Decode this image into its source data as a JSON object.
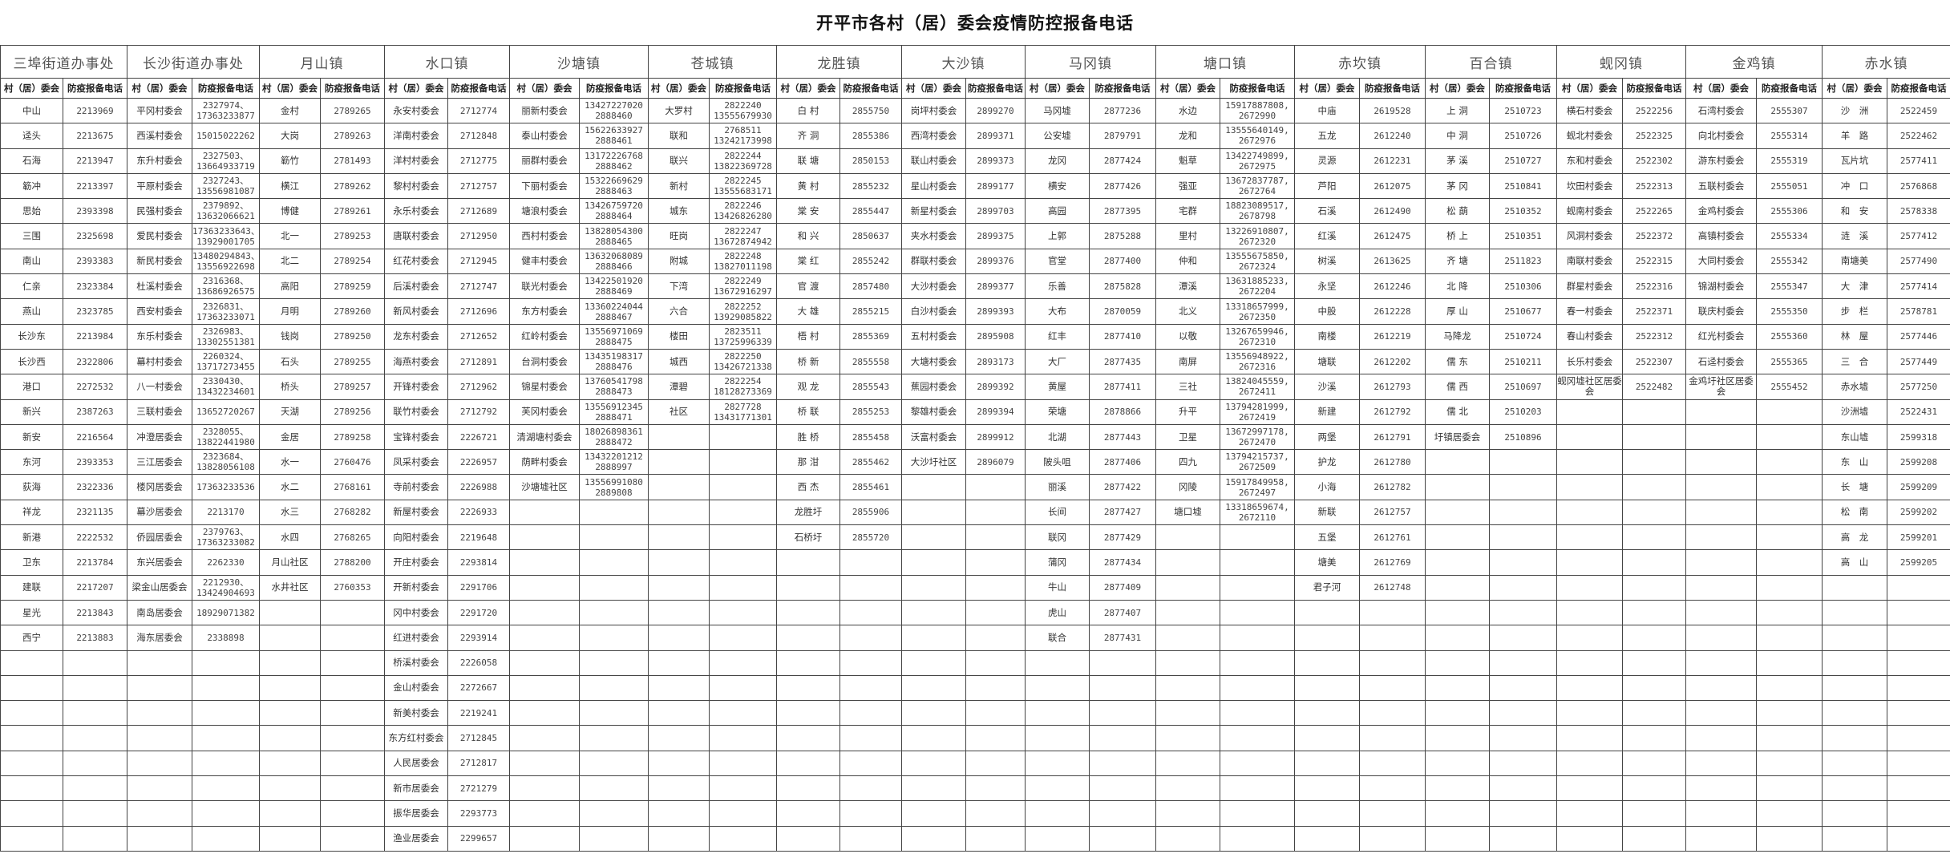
{
  "title": "开平市各村（居）委会疫情防控报备电话",
  "sub_headers": {
    "name": "村（居）委会",
    "phone": "防疫报备电话"
  },
  "towns": [
    {
      "name": "三埠街道办事处",
      "rows": [
        [
          "中山",
          "2213969"
        ],
        [
          "迳头",
          "2213675"
        ],
        [
          "石海",
          "2213947"
        ],
        [
          "簕冲",
          "2213397"
        ],
        [
          "思始",
          "2393398"
        ],
        [
          "三围",
          "2325698"
        ],
        [
          "南山",
          "2393383"
        ],
        [
          "仁亲",
          "2323384"
        ],
        [
          "燕山",
          "2323785"
        ],
        [
          "长沙东",
          "2213984"
        ],
        [
          "长沙西",
          "2322806"
        ],
        [
          "港口",
          "2272532"
        ],
        [
          "新兴",
          "2387263"
        ],
        [
          "新安",
          "2216564"
        ],
        [
          "东河",
          "2393353"
        ],
        [
          "荻海",
          "2322336"
        ],
        [
          "祥龙",
          "2321135"
        ],
        [
          "新港",
          "2222532"
        ],
        [
          "卫东",
          "2213784"
        ],
        [
          "建联",
          "2217207"
        ],
        [
          "星光",
          "2213843"
        ],
        [
          "西宁",
          "2213883"
        ]
      ]
    },
    {
      "name": "长沙街道办事处",
      "rows": [
        [
          "平冈村委会",
          "2327974、\n17363233877"
        ],
        [
          "西溪村委会",
          "15015022262"
        ],
        [
          "东升村委会",
          "2327503、\n13664933719"
        ],
        [
          "平原村委会",
          "2327243、\n13556981087"
        ],
        [
          "民强村委会",
          "2379892、\n13632066621"
        ],
        [
          "爱民村委会",
          "17363233643、\n13929001705"
        ],
        [
          "新民村委会",
          "13480294843、\n13556922698"
        ],
        [
          "杜溪村委会",
          "2316368、\n13686926575"
        ],
        [
          "西安村委会",
          "2326831、\n17363233071"
        ],
        [
          "东乐村委会",
          "2326983、\n13302551381"
        ],
        [
          "幕村村委会",
          "2260324、\n13717273455"
        ],
        [
          "八一村委会",
          "2330430、\n13432234601"
        ],
        [
          "三联村委会",
          "13652720267"
        ],
        [
          "冲澄居委会",
          "2328055、\n13822441980"
        ],
        [
          "三江居委会",
          "2323684、\n13828056108"
        ],
        [
          "楼冈居委会",
          "17363233536"
        ],
        [
          "幕沙居委会",
          "2213170"
        ],
        [
          "侨园居委会",
          "2379763、\n17363233082"
        ],
        [
          "东兴居委会",
          "2262330"
        ],
        [
          "梁金山居委会",
          "2212930、\n13424904693"
        ],
        [
          "南岛居委会",
          "18929071382"
        ],
        [
          "海东居委会",
          "2338898"
        ]
      ]
    },
    {
      "name": "月山镇",
      "rows": [
        [
          "金村",
          "2789265"
        ],
        [
          "大岗",
          "2789263"
        ],
        [
          "簕竹",
          "2781493"
        ],
        [
          "横江",
          "2789262"
        ],
        [
          "博健",
          "2789261"
        ],
        [
          "北一",
          "2789253"
        ],
        [
          "北二",
          "2789254"
        ],
        [
          "高阳",
          "2789259"
        ],
        [
          "月明",
          "2789260"
        ],
        [
          "钱岗",
          "2789250"
        ],
        [
          "石头",
          "2789255"
        ],
        [
          "桥头",
          "2789257"
        ],
        [
          "天湖",
          "2789256"
        ],
        [
          "金居",
          "2789258"
        ],
        [
          "水一",
          "2760476"
        ],
        [
          "水二",
          "2768161"
        ],
        [
          "水三",
          "2768282"
        ],
        [
          "水四",
          "2768265"
        ],
        [
          "月山社区",
          "2788200"
        ],
        [
          "水井社区",
          "2760353"
        ]
      ]
    },
    {
      "name": "水口镇",
      "rows": [
        [
          "永安村委会",
          "2712774"
        ],
        [
          "洋南村委会",
          "2712848"
        ],
        [
          "洋村村委会",
          "2712775"
        ],
        [
          "黎村村委会",
          "2712757"
        ],
        [
          "永乐村委会",
          "2712689"
        ],
        [
          "唐联村委会",
          "2712950"
        ],
        [
          "红花村委会",
          "2712945"
        ],
        [
          "后溪村委会",
          "2712747"
        ],
        [
          "新风村委会",
          "2712696"
        ],
        [
          "龙东村委会",
          "2712652"
        ],
        [
          "海燕村委会",
          "2712891"
        ],
        [
          "开锋村委会",
          "2712962"
        ],
        [
          "联竹村委会",
          "2712792"
        ],
        [
          "宝锋村委会",
          "2226721"
        ],
        [
          "凤采村委会",
          "2226957"
        ],
        [
          "寺前村委会",
          "2226988"
        ],
        [
          "新屋村委会",
          "2226933"
        ],
        [
          "向阳村委会",
          "2219648"
        ],
        [
          "开庄村委会",
          "2293814"
        ],
        [
          "开新村委会",
          "2291706"
        ],
        [
          "冈中村委会",
          "2291720"
        ],
        [
          "红进村委会",
          "2293914"
        ],
        [
          "桥溪村委会",
          "2226058"
        ],
        [
          "金山村委会",
          "2272667"
        ],
        [
          "新美村委会",
          "2219241"
        ],
        [
          "东方红村委会",
          "2712845"
        ],
        [
          "人民居委会",
          "2712817"
        ],
        [
          "新市居委会",
          "2721279"
        ],
        [
          "振华居委会",
          "2293773"
        ],
        [
          "渔业居委会",
          "2299657"
        ]
      ]
    },
    {
      "name": "沙塘镇",
      "rows": [
        [
          "丽新村委会",
          "13427227020\n2888460"
        ],
        [
          "泰山村委会",
          "15622633927\n2888461"
        ],
        [
          "丽群村委会",
          "13172226768\n2888462"
        ],
        [
          "下丽村委会",
          "15322669629\n2888463"
        ],
        [
          "塘浪村委会",
          "13426759720\n2888464"
        ],
        [
          "西村村委会",
          "13828054300\n2888465"
        ],
        [
          "健丰村委会",
          "13632068089\n2888466"
        ],
        [
          "联光村委会",
          "13422501920\n2888469"
        ],
        [
          "东方村委会",
          "13360224044\n2888467"
        ],
        [
          "红岭村委会",
          "13556971069\n2888475"
        ],
        [
          "台洞村委会",
          "13435198317\n2888476"
        ],
        [
          "锦星村委会",
          "13760541798\n2888473"
        ],
        [
          "芙冈村委会",
          "13556912345\n2888471"
        ],
        [
          "清湖塘村委会",
          "18026898361\n2888472"
        ],
        [
          "荫畔村委会",
          "13432201212\n2888997"
        ],
        [
          "沙塘墟社区",
          "13556991080\n2889808"
        ]
      ]
    },
    {
      "name": "苍城镇",
      "rows": [
        [
          "大罗村",
          "2822240\n13555679930"
        ],
        [
          "联和",
          "2768511\n13242173998"
        ],
        [
          "联兴",
          "2822244\n13822369728"
        ],
        [
          "新村",
          "2822245\n13555683171"
        ],
        [
          "城东",
          "2822246\n13426826280"
        ],
        [
          "旺岗",
          "2822247\n13672874942"
        ],
        [
          "附城",
          "2822248\n13827011198"
        ],
        [
          "下湾",
          "2822249\n13672916297"
        ],
        [
          "六合",
          "2822252\n13929085822"
        ],
        [
          "楼田",
          "2823511\n13725996339"
        ],
        [
          "城西",
          "2822250\n13426721338"
        ],
        [
          "潭碧",
          "2822254\n18128273369"
        ],
        [
          "社区",
          "2827728\n13431771301"
        ]
      ]
    },
    {
      "name": "龙胜镇",
      "rows": [
        [
          "白 村",
          "2855750"
        ],
        [
          "齐 洞",
          "2855386"
        ],
        [
          "联 塘",
          "2850153"
        ],
        [
          "黄 村",
          "2855232"
        ],
        [
          "棠 安",
          "2855447"
        ],
        [
          "和 兴",
          "2850637"
        ],
        [
          "棠 红",
          "2855242"
        ],
        [
          "官 渡",
          "2857480"
        ],
        [
          "大 雄",
          "2855215"
        ],
        [
          "梧 村",
          "2855369"
        ],
        [
          "桥 新",
          "2855558"
        ],
        [
          "观 龙",
          "2855543"
        ],
        [
          "桥 联",
          "2855253"
        ],
        [
          "胜 桥",
          "2855458"
        ],
        [
          "那 泔",
          "2855462"
        ],
        [
          "西 杰",
          "2855461"
        ],
        [
          "龙胜圩",
          "2855906"
        ],
        [
          "石桥圩",
          "2855720"
        ]
      ]
    },
    {
      "name": "大沙镇",
      "rows": [
        [
          "岗坪村委会",
          "2899270"
        ],
        [
          "西湾村委会",
          "2899371"
        ],
        [
          "联山村委会",
          "2899373"
        ],
        [
          "星山村委会",
          "2899177"
        ],
        [
          "新星村委会",
          "2899703"
        ],
        [
          "夹水村委会",
          "2899375"
        ],
        [
          "群联村委会",
          "2899376"
        ],
        [
          "大沙村委会",
          "2899377"
        ],
        [
          "白沙村委会",
          "2899393"
        ],
        [
          "五村村委会",
          "2895908"
        ],
        [
          "大塘村委会",
          "2893173"
        ],
        [
          "蕉园村委会",
          "2899392"
        ],
        [
          "黎雄村委会",
          "2899394"
        ],
        [
          "沃富村委会",
          "2899912"
        ],
        [
          "大沙圩社区",
          "2896079"
        ]
      ]
    },
    {
      "name": "马冈镇",
      "rows": [
        [
          "马冈墟",
          "2877236"
        ],
        [
          "公安墟",
          "2879791"
        ],
        [
          "龙冈",
          "2877424"
        ],
        [
          "横安",
          "2877426"
        ],
        [
          "高园",
          "2877395"
        ],
        [
          "上郭",
          "2875288"
        ],
        [
          "官堂",
          "2877400"
        ],
        [
          "乐善",
          "2875828"
        ],
        [
          "大布",
          "2870059"
        ],
        [
          "红丰",
          "2877410"
        ],
        [
          "大厂",
          "2877435"
        ],
        [
          "黄屋",
          "2877411"
        ],
        [
          "荣塘",
          "2878866"
        ],
        [
          "北湖",
          "2877443"
        ],
        [
          "陂头咀",
          "2877406"
        ],
        [
          "丽溪",
          "2877422"
        ],
        [
          "长间",
          "2877427"
        ],
        [
          "联冈",
          "2877429"
        ],
        [
          "蒲冈",
          "2877434"
        ],
        [
          "牛山",
          "2877409"
        ],
        [
          "虎山",
          "2877407"
        ],
        [
          "联合",
          "2877431"
        ]
      ]
    },
    {
      "name": "塘口镇",
      "rows": [
        [
          "水边",
          "15917887808,\n2672990"
        ],
        [
          "龙和",
          "13555640149,\n2672976"
        ],
        [
          "魁草",
          "13422749899,\n2672975"
        ],
        [
          "强亚",
          "13672837787,\n2672764"
        ],
        [
          "宅群",
          "18823089517,\n2678798"
        ],
        [
          "里村",
          "13226910807,\n2672320"
        ],
        [
          "仲和",
          "13555675850,\n2672324"
        ],
        [
          "潭溪",
          "13631885233,\n2672204"
        ],
        [
          "北义",
          "13318657999,\n2672350"
        ],
        [
          "以敬",
          "13267659946,\n2672310"
        ],
        [
          "南屏",
          "13556948922,\n2672316"
        ],
        [
          "三社",
          "13824045559,\n2672411"
        ],
        [
          "升平",
          "13794281999,\n2672419"
        ],
        [
          "卫星",
          "13672997178,\n2672470"
        ],
        [
          "四九",
          "13794215737,\n2672509"
        ],
        [
          "冈陵",
          "15917849958,\n2672497"
        ],
        [
          "塘口墟",
          "13318659674,\n2672110"
        ]
      ]
    },
    {
      "name": "赤坎镇",
      "rows": [
        [
          "中庙",
          "2619528"
        ],
        [
          "五龙",
          "2612240"
        ],
        [
          "灵源",
          "2612231"
        ],
        [
          "芦阳",
          "2612075"
        ],
        [
          "石溪",
          "2612490"
        ],
        [
          "红溪",
          "2612475"
        ],
        [
          "树溪",
          "2613625"
        ],
        [
          "永坚",
          "2612246"
        ],
        [
          "中股",
          "2612228"
        ],
        [
          "南楼",
          "2612219"
        ],
        [
          "塘联",
          "2612202"
        ],
        [
          "沙溪",
          "2612793"
        ],
        [
          "新建",
          "2612792"
        ],
        [
          "两堡",
          "2612791"
        ],
        [
          "护龙",
          "2612780"
        ],
        [
          "小海",
          "2612782"
        ],
        [
          "新联",
          "2612757"
        ],
        [
          "五堡",
          "2612761"
        ],
        [
          "塘美",
          "2612769"
        ],
        [
          "君子河",
          "2612748"
        ]
      ]
    },
    {
      "name": "百合镇",
      "rows": [
        [
          "上 洞",
          "2510723"
        ],
        [
          "中 洞",
          "2510726"
        ],
        [
          "茅 溪",
          "2510727"
        ],
        [
          "茅 冈",
          "2510841"
        ],
        [
          "松 蓢",
          "2510352"
        ],
        [
          "桥 上",
          "2510351"
        ],
        [
          "齐  塘",
          "2511823"
        ],
        [
          "北 降",
          "2510306"
        ],
        [
          "厚 山",
          "2510677"
        ],
        [
          "马降龙",
          "2510724"
        ],
        [
          "儒 东",
          "2510211"
        ],
        [
          "儒 西",
          "2510697"
        ],
        [
          "儒 北",
          "2510203"
        ],
        [
          "圩镇居委会",
          "2510896"
        ]
      ]
    },
    {
      "name": "蚬冈镇",
      "rows": [
        [
          "横石村委会",
          "2522256"
        ],
        [
          "蚬北村委会",
          "2522325"
        ],
        [
          "东和村委会",
          "2522302"
        ],
        [
          "坎田村委会",
          "2522313"
        ],
        [
          "蚬南村委会",
          "2522265"
        ],
        [
          "风洞村委会",
          "2522372"
        ],
        [
          "南联村委会",
          "2522315"
        ],
        [
          "群星村委会",
          "2522316"
        ],
        [
          "春一村委会",
          "2522371"
        ],
        [
          "春山村委会",
          "2522312"
        ],
        [
          "长乐村委会",
          "2522307"
        ],
        [
          "蚬冈墟社区居委会",
          "2522482"
        ]
      ]
    },
    {
      "name": "金鸡镇",
      "rows": [
        [
          "石湾村委会",
          "2555307"
        ],
        [
          "向北村委会",
          "2555314"
        ],
        [
          "游东村委会",
          "2555319"
        ],
        [
          "五联村委会",
          "2555051"
        ],
        [
          "金鸡村委会",
          "2555306"
        ],
        [
          "高镇村委会",
          "2555334"
        ],
        [
          "大同村委会",
          "2555342"
        ],
        [
          "锦湖村委会",
          "2555347"
        ],
        [
          "联庆村委会",
          "2555350"
        ],
        [
          "红光村委会",
          "2555360"
        ],
        [
          "石迳村委会",
          "2555365"
        ],
        [
          "金鸡圩社区居委会",
          "2555452"
        ]
      ]
    },
    {
      "name": "赤水镇",
      "rows": [
        [
          "沙　洲",
          "2522459"
        ],
        [
          "羊　路",
          "2522462"
        ],
        [
          "瓦片坑",
          "2577411"
        ],
        [
          "冲　口",
          "2576868"
        ],
        [
          "和　安",
          "2578338"
        ],
        [
          "涟　溪",
          "2577412"
        ],
        [
          "南塘美",
          "2577490"
        ],
        [
          "大　津",
          "2577414"
        ],
        [
          "步　栏",
          "2578781"
        ],
        [
          "林　屋",
          "2577446"
        ],
        [
          "三　合",
          "2577449"
        ],
        [
          "赤水墟",
          "2577250"
        ],
        [
          "沙洲墟",
          "2522431"
        ],
        [
          "东山墟",
          "2599318"
        ],
        [
          "东　山",
          "2599208"
        ],
        [
          "长　塘",
          "2599209"
        ],
        [
          "松　南",
          "2599202"
        ],
        [
          "高　龙",
          "2599201"
        ],
        [
          "高　山",
          "2599205"
        ]
      ]
    }
  ]
}
